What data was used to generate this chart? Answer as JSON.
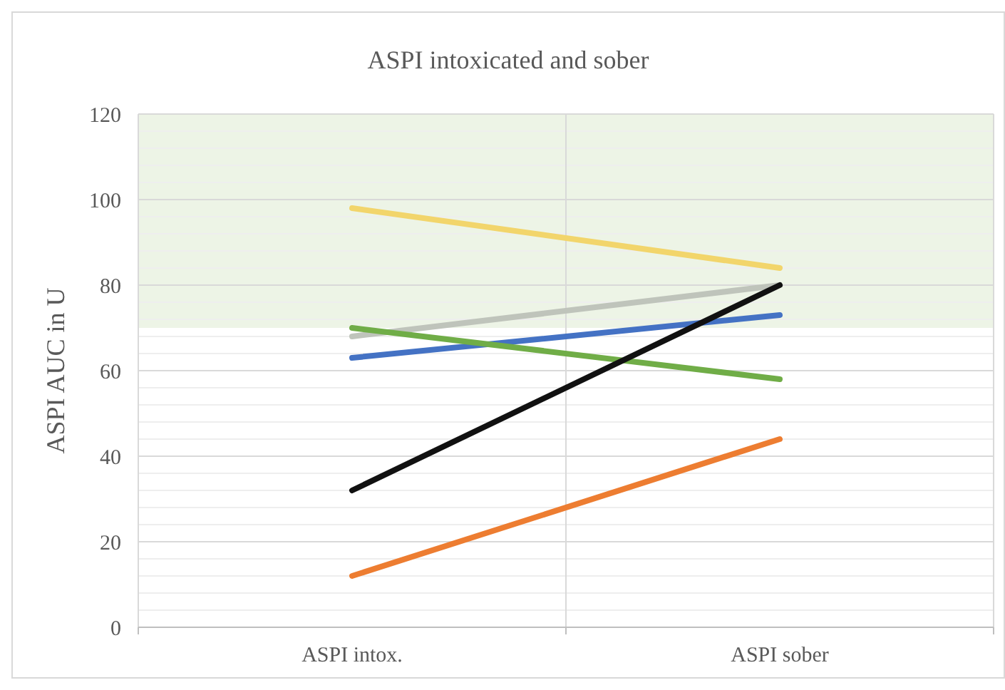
{
  "chart_data": {
    "type": "line",
    "title": "ASPI intoxicated and sober",
    "ylabel": "ASPI AUC in U",
    "categories": [
      "ASPI intox.",
      "ASPI sober"
    ],
    "series": [
      {
        "color": "#f2d56b",
        "values": [
          98,
          84
        ]
      },
      {
        "color": "#bfc4bb",
        "values": [
          68,
          80
        ]
      },
      {
        "color": "#4472c4",
        "values": [
          63,
          73
        ]
      },
      {
        "color": "#70ad47",
        "values": [
          70,
          58
        ]
      },
      {
        "color": "#111111",
        "values": [
          32,
          80
        ]
      },
      {
        "color": "#ed7d31",
        "values": [
          12,
          44
        ]
      }
    ],
    "ylim": [
      0,
      120
    ],
    "yticks": [
      0,
      {
        "value": 4,
        "label": null
      },
      {
        "value": 8,
        "label": null
      },
      {
        "value": 12,
        "label": null
      },
      {
        "value": 16,
        "label": null
      },
      20,
      {
        "value": 24,
        "label": null
      },
      {
        "value": 28,
        "label": null
      },
      {
        "value": 32,
        "label": null
      },
      {
        "value": 36,
        "label": null
      },
      40,
      {
        "value": 44,
        "label": null
      },
      {
        "value": 48,
        "label": null
      },
      {
        "value": 52,
        "label": null
      },
      {
        "value": 56,
        "label": null
      },
      60,
      {
        "value": 64,
        "label": null
      },
      {
        "value": 68,
        "label": null
      },
      {
        "value": 72,
        "label": null
      },
      {
        "value": 76,
        "label": null
      },
      80,
      {
        "value": 84,
        "label": null
      },
      {
        "value": 88,
        "label": null
      },
      {
        "value": 92,
        "label": null
      },
      {
        "value": 96,
        "label": null
      },
      100,
      {
        "value": 104,
        "label": null
      },
      {
        "value": 108,
        "label": null
      },
      {
        "value": 112,
        "label": null
      },
      {
        "value": 116,
        "label": null
      },
      120
    ],
    "bands": [
      {
        "axis": "y",
        "from": 70,
        "to": 120,
        "color": "#edf4e6"
      }
    ],
    "grid": true,
    "line_style": "solid",
    "marker": "none"
  }
}
